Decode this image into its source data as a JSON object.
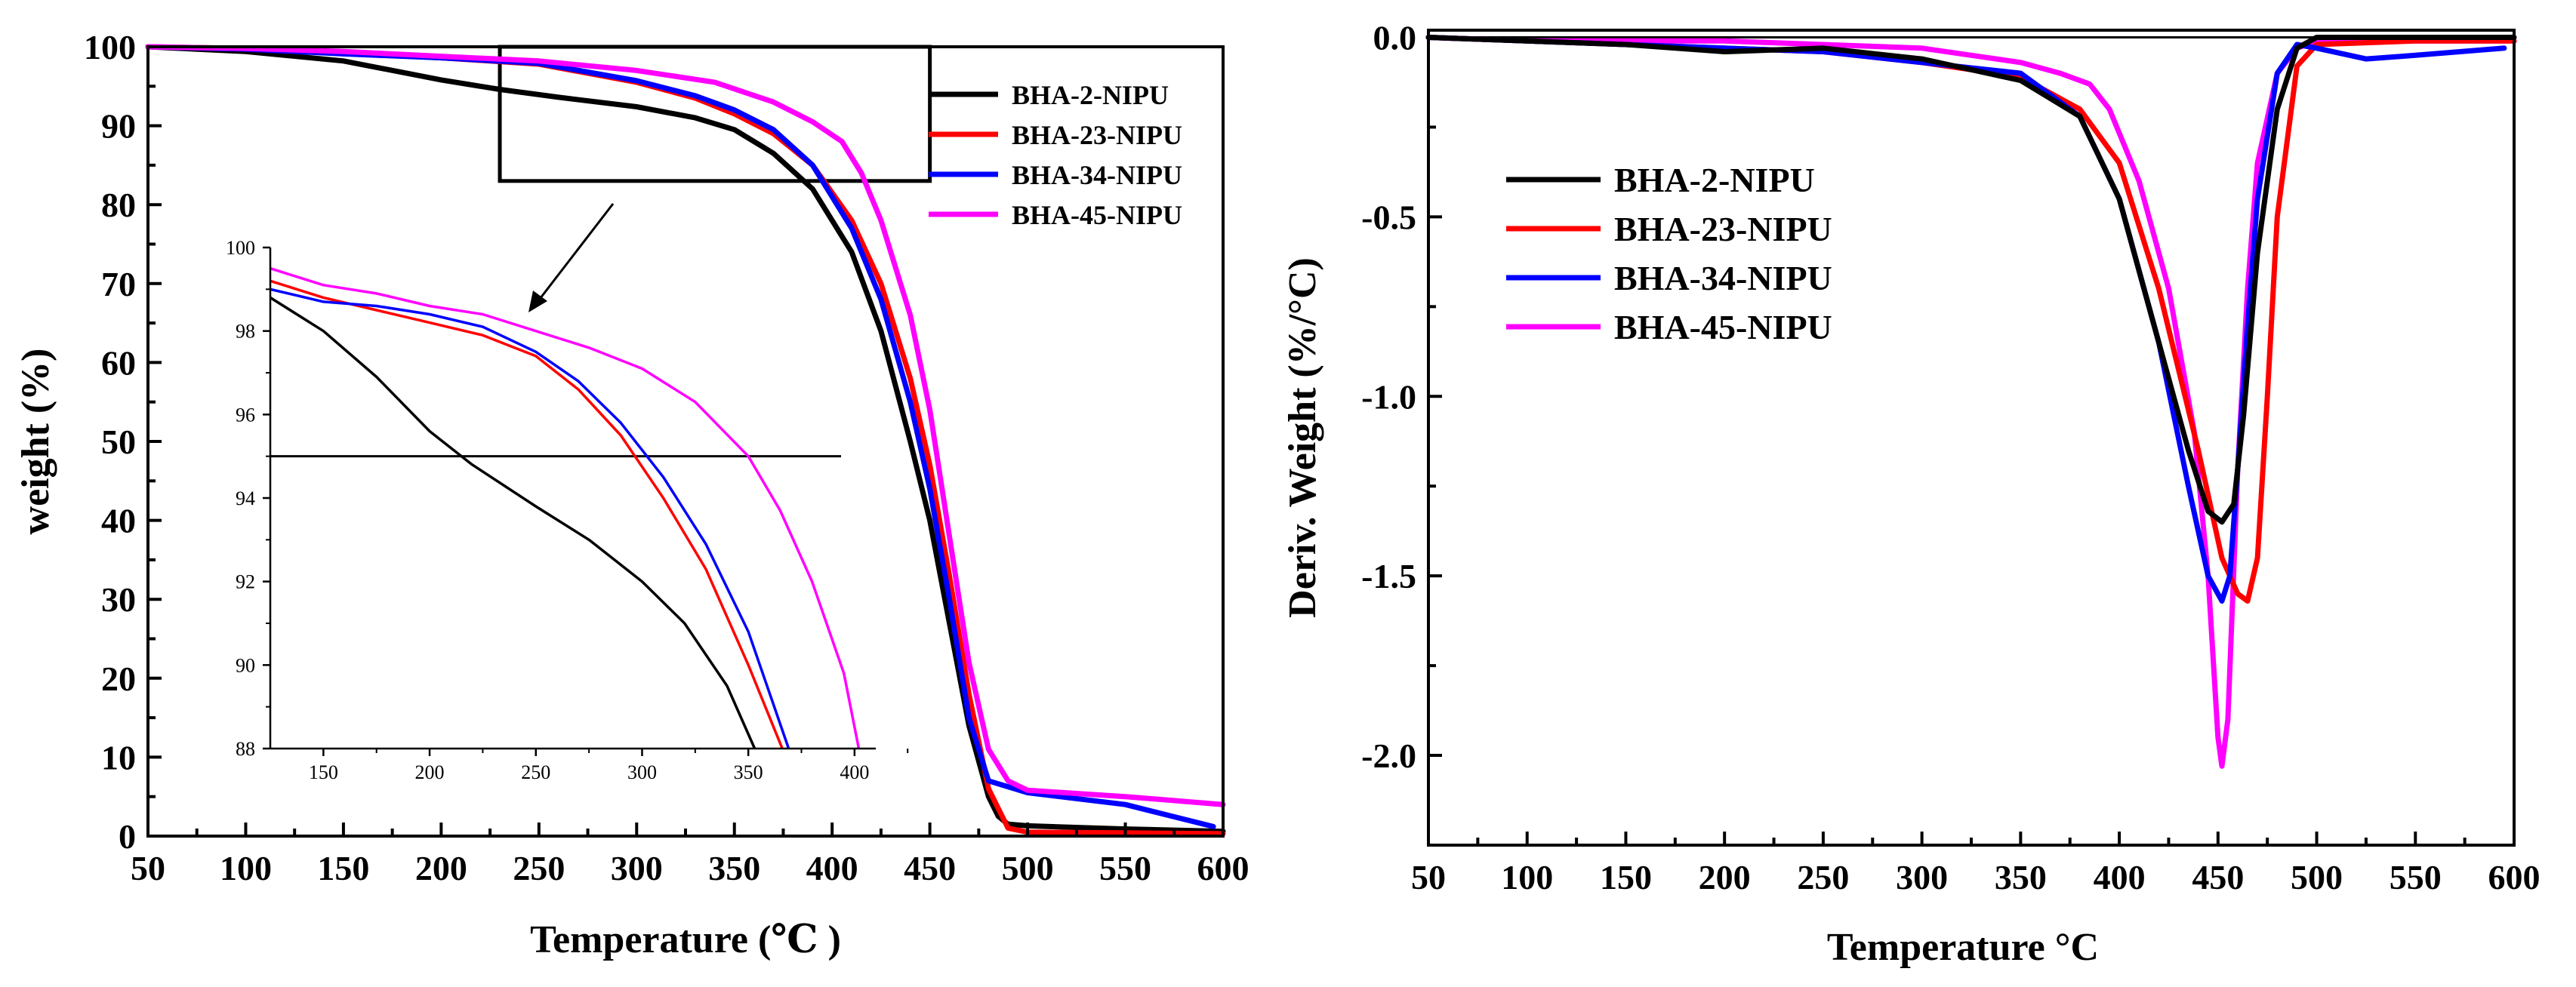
{
  "chart_data": [
    {
      "id": "tga",
      "type": "line",
      "title": "",
      "xlabel": "Temperature (℃ )",
      "ylabel": "weight (%)",
      "xlim": [
        50,
        600
      ],
      "ylim": [
        0,
        100
      ],
      "xticks": [
        50,
        100,
        150,
        200,
        250,
        300,
        350,
        400,
        450,
        500,
        550,
        600
      ],
      "yticks": [
        0,
        10,
        20,
        30,
        40,
        50,
        60,
        70,
        80,
        90,
        100
      ],
      "legend_position": "top-right",
      "zoom_box": {
        "x": [
          230,
          450
        ],
        "y": [
          83,
          100
        ]
      },
      "series": [
        {
          "name": "BHA-2-NIPU",
          "color": "#000000",
          "x": [
            50,
            100,
            150,
            200,
            230,
            260,
            300,
            330,
            350,
            370,
            390,
            410,
            425,
            440,
            450,
            460,
            470,
            480,
            485,
            490,
            500,
            550,
            600
          ],
          "y": [
            100,
            99.4,
            98.2,
            95.8,
            94.6,
            93.6,
            92.4,
            91.0,
            89.5,
            86.5,
            82.0,
            74.0,
            64.0,
            50.0,
            40.0,
            27.0,
            14.0,
            5.0,
            2.5,
            1.5,
            1.3,
            0.9,
            0.6
          ]
        },
        {
          "name": "BHA-23-NIPU",
          "color": "#ff0000",
          "x": [
            50,
            100,
            150,
            200,
            250,
            300,
            330,
            350,
            370,
            390,
            410,
            425,
            440,
            450,
            460,
            470,
            480,
            490,
            500,
            550,
            600
          ],
          "y": [
            100,
            99.8,
            99.2,
            98.6,
            97.8,
            95.5,
            93.5,
            91.5,
            89.0,
            85.0,
            78.0,
            70.0,
            58.0,
            47.0,
            33.0,
            18.0,
            6.0,
            1.0,
            0.5,
            0.4,
            0.3
          ]
        },
        {
          "name": "BHA-34-NIPU",
          "color": "#0000ff",
          "x": [
            50,
            100,
            150,
            200,
            250,
            300,
            330,
            350,
            370,
            390,
            410,
            425,
            440,
            450,
            460,
            470,
            480,
            500,
            550,
            595
          ],
          "y": [
            100,
            99.7,
            99.1,
            98.6,
            97.9,
            95.7,
            93.8,
            92.0,
            89.5,
            85.0,
            77.0,
            68.0,
            55.0,
            44.0,
            30.0,
            15.0,
            7.0,
            5.5,
            4.0,
            1.2
          ]
        },
        {
          "name": "BHA-45-NIPU",
          "color": "#ff00ff",
          "x": [
            50,
            100,
            150,
            200,
            250,
            300,
            340,
            370,
            390,
            405,
            415,
            425,
            440,
            450,
            460,
            470,
            480,
            490,
            500,
            550,
            600
          ],
          "y": [
            100,
            99.8,
            99.4,
            98.8,
            98.2,
            97.0,
            95.5,
            93.0,
            90.5,
            88.0,
            84.0,
            78.0,
            66.0,
            54.0,
            38.0,
            22.0,
            11.0,
            7.0,
            5.8,
            5.0,
            4.0
          ]
        }
      ]
    },
    {
      "id": "tga-inset",
      "type": "line",
      "xlim": [
        125,
        410
      ],
      "ylim": [
        88,
        100
      ],
      "xticks": [
        150,
        200,
        250,
        300,
        350,
        400
      ],
      "yticks": [
        88,
        90,
        92,
        94,
        96,
        98,
        100
      ],
      "reference_line_y": 95,
      "series": [
        {
          "name": "BHA-2-NIPU",
          "color": "#000000",
          "x": [
            125,
            150,
            175,
            200,
            220,
            250,
            275,
            300,
            320,
            340,
            353
          ],
          "y": [
            98.8,
            98.0,
            96.9,
            95.6,
            94.8,
            93.8,
            93.0,
            92.0,
            91.0,
            89.5,
            88.0
          ]
        },
        {
          "name": "BHA-23-NIPU",
          "color": "#ff0000",
          "x": [
            125,
            150,
            175,
            200,
            225,
            250,
            270,
            290,
            310,
            330,
            350,
            366
          ],
          "y": [
            99.2,
            98.8,
            98.5,
            98.2,
            97.9,
            97.4,
            96.6,
            95.5,
            94.0,
            92.3,
            90.0,
            88.0
          ]
        },
        {
          "name": "BHA-34-NIPU",
          "color": "#0000ff",
          "x": [
            125,
            150,
            175,
            200,
            225,
            250,
            270,
            290,
            310,
            330,
            350,
            369
          ],
          "y": [
            99.0,
            98.7,
            98.6,
            98.4,
            98.1,
            97.5,
            96.8,
            95.8,
            94.5,
            92.9,
            90.8,
            88.0
          ]
        },
        {
          "name": "BHA-45-NIPU",
          "color": "#ff00ff",
          "x": [
            125,
            150,
            175,
            200,
            225,
            250,
            275,
            300,
            325,
            350,
            365,
            380,
            395,
            402
          ],
          "y": [
            99.5,
            99.1,
            98.9,
            98.6,
            98.4,
            98.0,
            97.6,
            97.1,
            96.3,
            95.0,
            93.7,
            92.0,
            89.8,
            88.0
          ]
        }
      ]
    },
    {
      "id": "dtg",
      "type": "line",
      "title": "",
      "xlabel": "Temperature °C",
      "ylabel": "Deriv. Weight (%/°C)",
      "xlim": [
        50,
        600
      ],
      "ylim": [
        -2.25,
        0.02
      ],
      "xticks": [
        50,
        100,
        150,
        200,
        250,
        300,
        350,
        400,
        450,
        500,
        550,
        600
      ],
      "yticks": [
        0.0,
        -0.5,
        -1.0,
        -1.5,
        -2.0
      ],
      "ytick_labels": [
        "0.0",
        "-0.5",
        "-1.0",
        "-1.5",
        "-2.0"
      ],
      "legend_position": "upper-left",
      "series": [
        {
          "name": "BHA-2-NIPU",
          "color": "#000000",
          "x": [
            50,
            100,
            150,
            200,
            250,
            300,
            350,
            380,
            400,
            420,
            435,
            445,
            452,
            458,
            463,
            470,
            480,
            490,
            500,
            550,
            600
          ],
          "y": [
            0,
            -0.01,
            -0.02,
            -0.04,
            -0.03,
            -0.06,
            -0.12,
            -0.22,
            -0.45,
            -0.85,
            -1.15,
            -1.32,
            -1.35,
            -1.3,
            -1.05,
            -0.6,
            -0.2,
            -0.03,
            0,
            0,
            0
          ]
        },
        {
          "name": "BHA-23-NIPU",
          "color": "#ff0000",
          "x": [
            50,
            100,
            150,
            200,
            250,
            300,
            350,
            380,
            400,
            420,
            440,
            452,
            460,
            465,
            470,
            475,
            480,
            490,
            500,
            550,
            600
          ],
          "y": [
            0,
            -0.01,
            -0.02,
            -0.03,
            -0.04,
            -0.07,
            -0.11,
            -0.2,
            -0.35,
            -0.7,
            -1.15,
            -1.45,
            -1.55,
            -1.57,
            -1.45,
            -1.0,
            -0.5,
            -0.08,
            -0.02,
            -0.01,
            -0.01
          ]
        },
        {
          "name": "BHA-34-NIPU",
          "color": "#0000ff",
          "x": [
            50,
            100,
            150,
            200,
            250,
            300,
            350,
            380,
            400,
            420,
            435,
            445,
            452,
            456,
            460,
            465,
            470,
            480,
            490,
            500,
            525,
            550,
            595
          ],
          "y": [
            0,
            -0.01,
            -0.02,
            -0.03,
            -0.04,
            -0.07,
            -0.1,
            -0.22,
            -0.45,
            -0.85,
            -1.25,
            -1.5,
            -1.57,
            -1.5,
            -1.2,
            -0.8,
            -0.45,
            -0.1,
            -0.02,
            -0.03,
            -0.06,
            -0.05,
            -0.03
          ]
        },
        {
          "name": "BHA-45-NIPU",
          "color": "#ff00ff",
          "x": [
            50,
            100,
            150,
            200,
            250,
            300,
            350,
            370,
            385,
            395,
            410,
            425,
            438,
            445,
            450,
            452,
            455,
            460,
            465,
            470,
            480,
            490,
            500,
            550,
            600
          ],
          "y": [
            0,
            -0.01,
            -0.01,
            -0.01,
            -0.02,
            -0.03,
            -0.07,
            -0.1,
            -0.13,
            -0.2,
            -0.4,
            -0.7,
            -1.1,
            -1.5,
            -1.95,
            -2.03,
            -1.9,
            -1.2,
            -0.7,
            -0.35,
            -0.1,
            -0.03,
            -0.01,
            -0.01,
            -0.01
          ]
        }
      ]
    }
  ]
}
